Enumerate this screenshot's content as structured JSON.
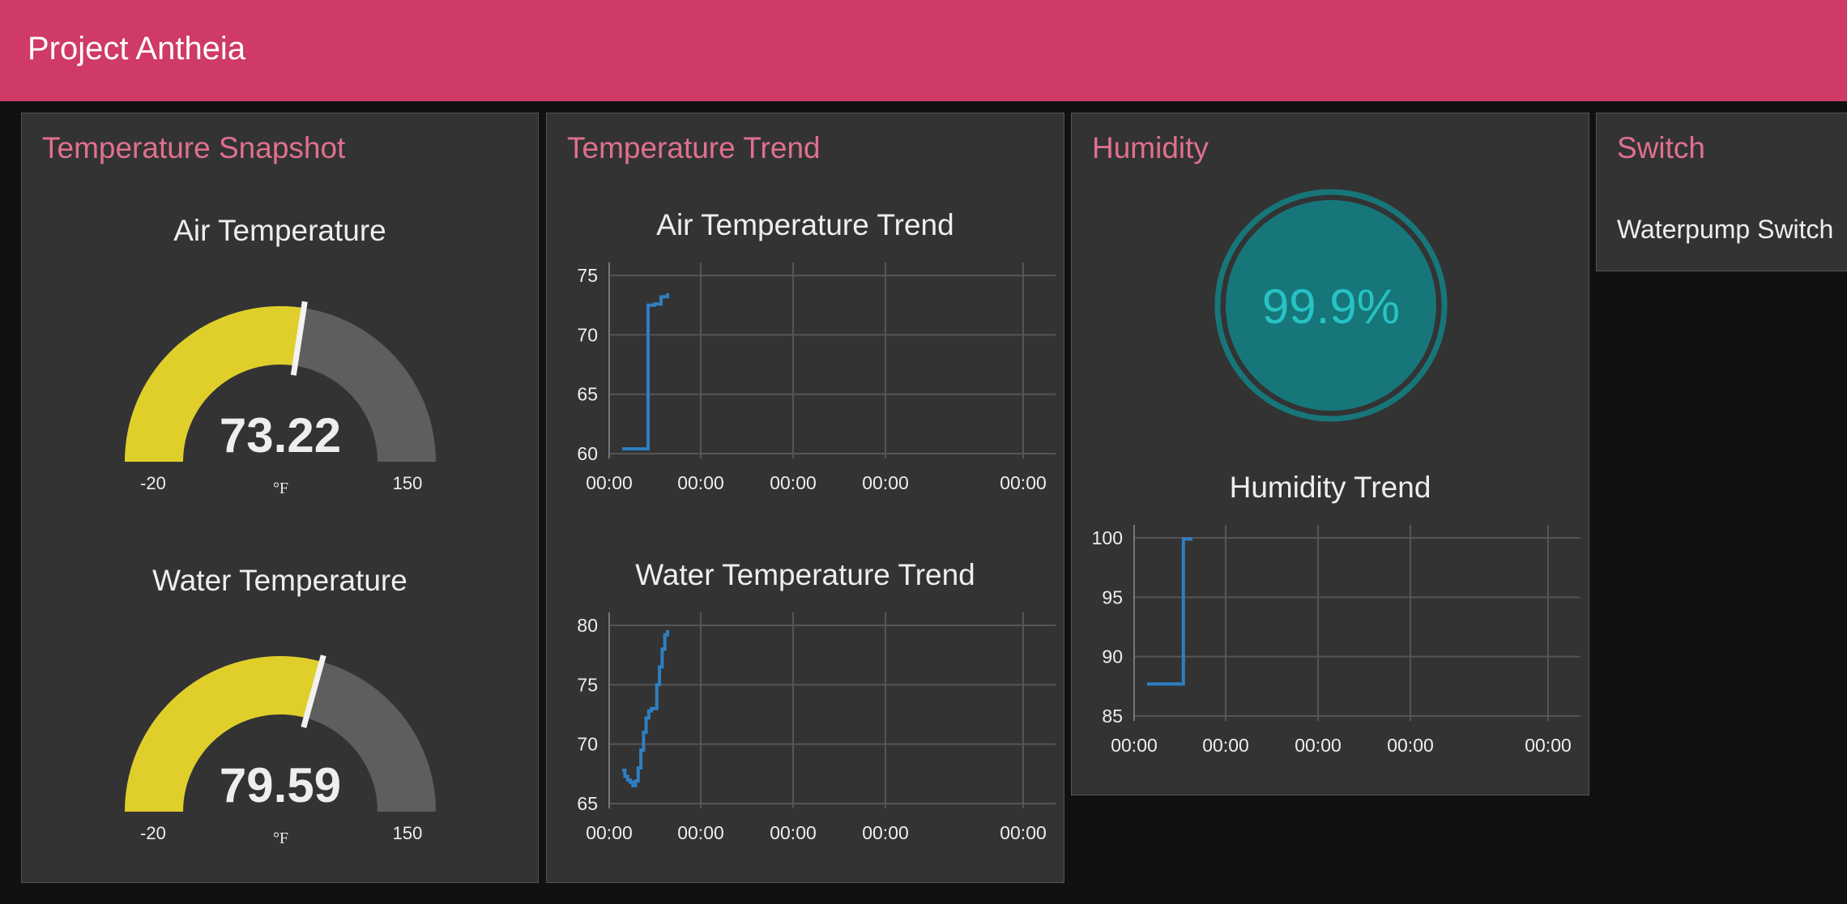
{
  "header": {
    "title": "Project Antheia"
  },
  "colors": {
    "header": "#cf3a66",
    "card_title": "#e0708f",
    "gauge_fill": "#e0cf2a",
    "gauge_track": "#5e5e5e",
    "line": "#2e7fc2",
    "humidity_fill": "#17767a",
    "humidity_text": "#27c2c4"
  },
  "temperature_snapshot": {
    "title": "Temperature Snapshot",
    "air": {
      "label": "Air Temperature",
      "value": "73.22",
      "min": "-20",
      "max": "150",
      "unit": "°F",
      "value_num": 73.22,
      "min_num": -20,
      "max_num": 150
    },
    "water": {
      "label": "Water Temperature",
      "value": "79.59",
      "min": "-20",
      "max": "150",
      "unit": "°F",
      "value_num": 79.59,
      "min_num": -20,
      "max_num": 150
    }
  },
  "temperature_trend": {
    "title": "Temperature Trend"
  },
  "humidity": {
    "title": "Humidity",
    "value_text": "99.9%",
    "value_num": 99.9
  },
  "switch": {
    "title": "Switch",
    "label": "Waterpump Switch"
  },
  "chart_data": [
    {
      "id": "air",
      "type": "line",
      "title": "Air Temperature Trend",
      "xlabel": "",
      "ylabel": "",
      "ylim": [
        60,
        75
      ],
      "yticks": [
        "75",
        "70",
        "65",
        "60"
      ],
      "xticks": [
        "00:00",
        "00:00",
        "00:00",
        "00:00",
        "00:00"
      ],
      "grid": true,
      "series": [
        {
          "values": [
            60.4,
            60.4,
            60.4,
            60.4,
            72.5,
            72.6,
            73.2,
            73.5
          ]
        }
      ]
    },
    {
      "id": "water",
      "type": "line",
      "title": "Water Temperature Trend",
      "xlabel": "",
      "ylabel": "",
      "ylim": [
        65,
        80
      ],
      "yticks": [
        "80",
        "75",
        "70",
        "65"
      ],
      "xticks": [
        "00:00",
        "00:00",
        "00:00",
        "00:00",
        "00:00"
      ],
      "grid": true,
      "series": [
        {
          "values": [
            67.8,
            67.3,
            67.0,
            66.8,
            66.5,
            66.9,
            68.0,
            69.5,
            71.0,
            72.2,
            72.8,
            73.0,
            73.0,
            75.0,
            76.5,
            78.0,
            79.2,
            79.6
          ]
        }
      ]
    },
    {
      "id": "humidity",
      "type": "line",
      "title": "Humidity Trend",
      "xlabel": "",
      "ylabel": "",
      "ylim": [
        85,
        100
      ],
      "yticks": [
        "100",
        "95",
        "90",
        "85"
      ],
      "xticks": [
        "00:00",
        "00:00",
        "00:00",
        "00:00",
        "00:00"
      ],
      "grid": true,
      "series": [
        {
          "values": [
            87.7,
            87.7,
            87.7,
            87.7,
            99.9,
            99.9
          ]
        }
      ]
    }
  ]
}
